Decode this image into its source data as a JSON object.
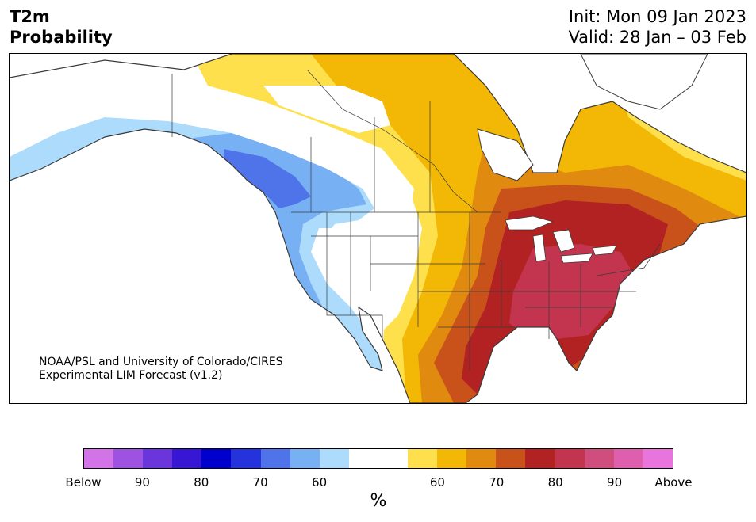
{
  "title": {
    "left_line1": "T2m",
    "left_line2": "Probability",
    "init": "Init: Mon 09 Jan 2023",
    "valid": "Valid: 28 Jan – 03 Feb"
  },
  "credit": {
    "line1": "NOAA/PSL and University of Colorado/CIRES",
    "line2": "Experimental LIM Forecast (v1.2)"
  },
  "colorbar": {
    "colors": [
      "#d373e8",
      "#9e52e0",
      "#6a35da",
      "#3717d3",
      "#0000cc",
      "#2433dc",
      "#4f74ea",
      "#78b0f4",
      "#acdbfb",
      "#ffffff",
      "#ffffff",
      "#fee04c",
      "#f3b705",
      "#e08a10",
      "#c9521a",
      "#b22222",
      "#c3354f",
      "#d04e7e",
      "#df5faf",
      "#e775dd"
    ],
    "ticks": [
      "Below",
      "90",
      "80",
      "70",
      "60",
      "60",
      "70",
      "80",
      "90",
      "Above"
    ],
    "unit": "%"
  },
  "map": {
    "region": "North America",
    "palette": {
      "ocean": "#ffffff",
      "outline": "#3a3a3a",
      "above_50": "#fee04c",
      "above_60": "#f3b705",
      "above_70": "#e08a10",
      "above_75": "#c9521a",
      "above_80": "#b22222",
      "above_85": "#c3354f",
      "below_50": "#acdbfb",
      "below_60": "#78b0f4",
      "below_70": "#4f74ea"
    }
  }
}
